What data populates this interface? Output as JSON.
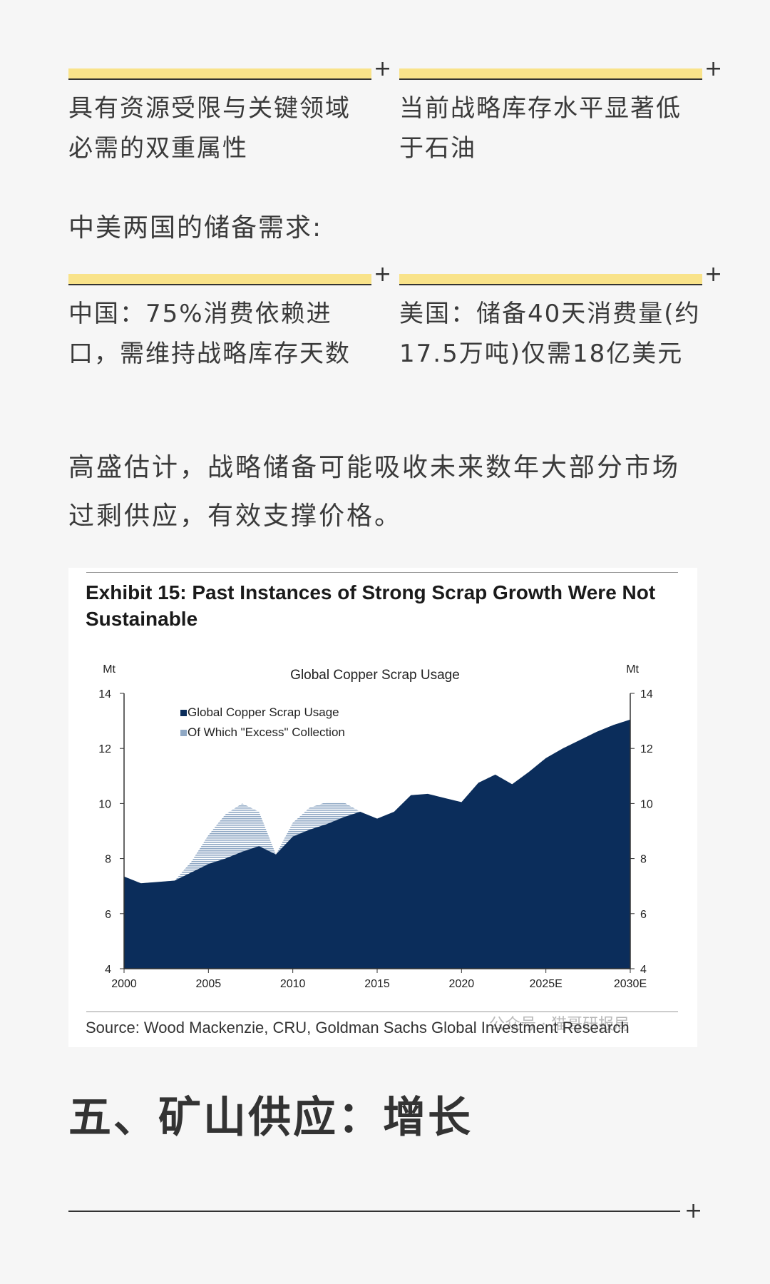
{
  "cards_row1": [
    {
      "text": "具有资源受限与关键领域必需的双重属性"
    },
    {
      "text": "当前战略库存水平显著低于石油"
    }
  ],
  "reserve_heading": "中美两国的储备需求:",
  "cards_row2": [
    {
      "text": "中国：75%消费依赖进口，需维持战略库存天数"
    },
    {
      "text": "美国：储备40天消费量(约17.5万吨)仅需18亿美元"
    }
  ],
  "plus_symbol": "+",
  "paragraph": "高盛估计，战略储备可能吸收未来数年大部分市场过剩供应，有效支撑价格。",
  "figure": {
    "title": "Exhibit 15: Past Instances of Strong Scrap Growth Were Not Sustainable",
    "source": "Source: Wood Mackenzie, CRU, Goldman Sachs Global Investment Research",
    "watermark": "公众号 · 猫哥研报局"
  },
  "chart_data": {
    "type": "area",
    "title": "Global Copper Scrap Usage",
    "ylabel_left": "Mt",
    "ylabel_right": "Mt",
    "ylim": [
      4,
      14
    ],
    "yticks": [
      4,
      6,
      8,
      10,
      12,
      14
    ],
    "xlim": [
      2000,
      2030
    ],
    "xticks": [
      {
        "value": 2000,
        "label": "2000"
      },
      {
        "value": 2005,
        "label": "2005"
      },
      {
        "value": 2010,
        "label": "2010"
      },
      {
        "value": 2015,
        "label": "2015"
      },
      {
        "value": 2020,
        "label": "2020"
      },
      {
        "value": 2025,
        "label": "2025E"
      },
      {
        "value": 2030,
        "label": "2030E"
      }
    ],
    "legend_position": "top-left",
    "series": [
      {
        "name": "Global Copper Scrap Usage",
        "color": "#0b2d5b",
        "x": [
          2000,
          2001,
          2002,
          2003,
          2004,
          2005,
          2006,
          2007,
          2008,
          2009,
          2010,
          2011,
          2012,
          2013,
          2014,
          2015,
          2016,
          2017,
          2018,
          2019,
          2020,
          2021,
          2022,
          2023,
          2024,
          2025,
          2026,
          2027,
          2028,
          2029,
          2030
        ],
        "values": [
          7.35,
          7.1,
          7.15,
          7.2,
          7.5,
          7.8,
          8.0,
          8.25,
          8.45,
          8.15,
          8.8,
          9.05,
          9.25,
          9.5,
          9.7,
          9.45,
          9.7,
          10.3,
          10.35,
          10.2,
          10.05,
          10.75,
          11.05,
          10.7,
          11.15,
          11.65,
          12.0,
          12.3,
          12.6,
          12.85,
          13.05
        ]
      },
      {
        "name": "Of Which \"Excess\" Collection",
        "color": "#8fa8c4",
        "x": [
          2000,
          2001,
          2002,
          2003,
          2004,
          2005,
          2006,
          2007,
          2008,
          2009,
          2010,
          2011,
          2012,
          2013,
          2014,
          2015,
          2016,
          2017,
          2018,
          2019,
          2020,
          2021,
          2022,
          2023,
          2024,
          2025,
          2026,
          2027,
          2028,
          2029,
          2030
        ],
        "values": [
          7.35,
          7.1,
          7.15,
          7.2,
          7.9,
          8.85,
          9.6,
          10.0,
          9.7,
          8.15,
          9.3,
          9.85,
          10.05,
          10.05,
          9.7,
          9.45,
          9.7,
          10.3,
          10.35,
          10.2,
          10.05,
          10.75,
          11.05,
          10.7,
          11.15,
          11.65,
          12.0,
          12.3,
          12.6,
          12.85,
          13.05
        ]
      }
    ]
  },
  "section_title": "五、矿山供应：增长"
}
